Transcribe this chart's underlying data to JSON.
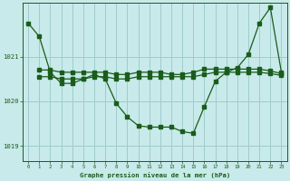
{
  "title": "Graphe pression niveau de la mer (hPa)",
  "bg_color": "#c8eaea",
  "grid_color": "#a0cccc",
  "line_color": "#1a5c1a",
  "xlim": [
    -0.5,
    23.5
  ],
  "ylim": [
    1018.65,
    1022.2
  ],
  "yticks": [
    1019,
    1020,
    1021
  ],
  "xticks": [
    0,
    1,
    2,
    3,
    4,
    5,
    6,
    7,
    8,
    9,
    10,
    11,
    12,
    13,
    14,
    15,
    16,
    17,
    18,
    19,
    20,
    21,
    22,
    23
  ],
  "series1": {
    "x": [
      0,
      1,
      2,
      3,
      4,
      5,
      6,
      7,
      8,
      9,
      10,
      11,
      12,
      13,
      14,
      15,
      16,
      17,
      18,
      19,
      20,
      21,
      22,
      23
    ],
    "y": [
      1021.75,
      1021.45,
      1020.65,
      1020.4,
      1020.4,
      1020.5,
      1020.6,
      1020.5,
      1019.95,
      1019.65,
      1019.45,
      1019.42,
      1019.42,
      1019.42,
      1019.32,
      1019.28,
      1019.88,
      1020.45,
      1020.65,
      1020.75,
      1021.05,
      1021.75,
      1022.1,
      1020.65
    ]
  },
  "series2": {
    "x": [
      1,
      2,
      3,
      4,
      5,
      6,
      7,
      8,
      9,
      10,
      11,
      12,
      13,
      14,
      15,
      16,
      17,
      18,
      19,
      20,
      21,
      22,
      23
    ],
    "y": [
      1020.55,
      1020.55,
      1020.5,
      1020.5,
      1020.5,
      1020.55,
      1020.55,
      1020.5,
      1020.5,
      1020.55,
      1020.55,
      1020.55,
      1020.55,
      1020.55,
      1020.55,
      1020.6,
      1020.65,
      1020.65,
      1020.65,
      1020.65,
      1020.65,
      1020.62,
      1020.58
    ]
  },
  "series3": {
    "x": [
      1,
      2,
      3,
      4,
      5,
      6,
      7,
      8,
      9,
      10,
      11,
      12,
      13,
      14,
      15,
      16,
      17,
      18,
      19,
      20,
      21,
      22,
      23
    ],
    "y": [
      1020.7,
      1020.7,
      1020.65,
      1020.65,
      1020.65,
      1020.65,
      1020.65,
      1020.6,
      1020.6,
      1020.65,
      1020.65,
      1020.65,
      1020.6,
      1020.6,
      1020.65,
      1020.72,
      1020.72,
      1020.72,
      1020.72,
      1020.72,
      1020.72,
      1020.68,
      1020.62
    ]
  }
}
